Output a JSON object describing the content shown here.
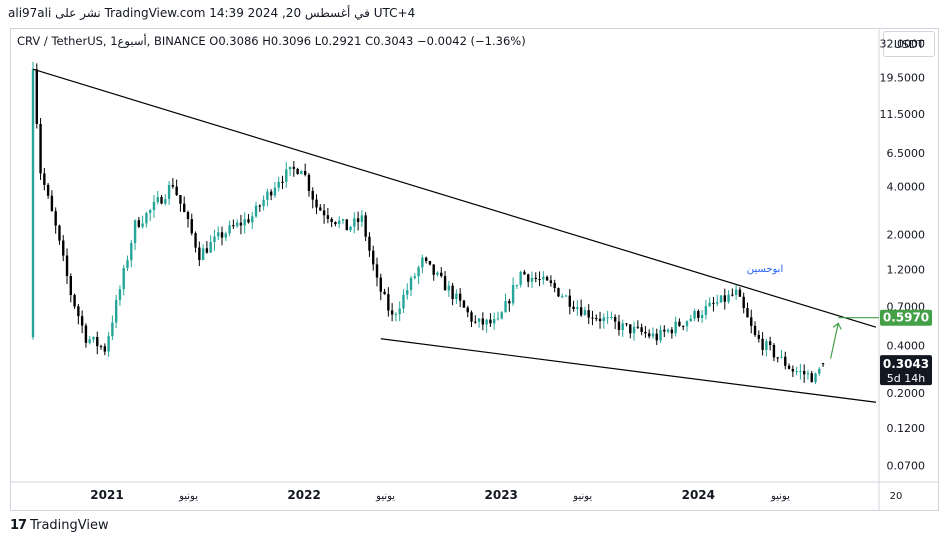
{
  "header": {
    "publisher_line": "ali97ali نشر على TradingView.com 14:39 2024 ,20 في أغسطس UTC+4"
  },
  "legend": {
    "symbol": "CRV / TetherUS, 1أسبوع, BINANCE",
    "open": "O0.3086",
    "high": "H0.3096",
    "low": "L0.2921",
    "close": "C0.3043",
    "change": "−0.0042 (−1.36%)"
  },
  "toolbar": {
    "currency_button": "USDT"
  },
  "annotation": {
    "text": "ابوحسين",
    "color": "#2962ff"
  },
  "price_tags": {
    "target": "0.5970",
    "current": "0.3043",
    "countdown": "5d 14h"
  },
  "footer": {
    "brand": "TradingView",
    "logo_mark": "17"
  },
  "colors": {
    "up": "#26a69a",
    "down": "#000000",
    "target": "#43a047"
  },
  "chart_data": {
    "type": "candlestick",
    "scale": "log",
    "ylim": [
      0.055,
      40
    ],
    "y_ticks": [
      "32.0000",
      "19.5000",
      "11.5000",
      "6.5000",
      "4.0000",
      "2.0000",
      "1.2000",
      "0.7000",
      "0.4000",
      "0.2000",
      "0.1200",
      "0.0700"
    ],
    "x_ticks": [
      "2021",
      "يونيو",
      "2022",
      "يونيو",
      "2023",
      "يونيو",
      "2024",
      "يونيو",
      "20"
    ],
    "close_anchors": [
      {
        "date": "2020-08-17",
        "close": 22.0
      },
      {
        "date": "2020-08-31",
        "close": 5.0
      },
      {
        "date": "2020-09-28",
        "close": 2.2
      },
      {
        "date": "2020-10-26",
        "close": 0.85
      },
      {
        "date": "2020-11-23",
        "close": 0.45
      },
      {
        "date": "2020-12-28",
        "close": 0.38
      },
      {
        "date": "2021-01-25",
        "close": 0.9
      },
      {
        "date": "2021-02-22",
        "close": 2.3
      },
      {
        "date": "2021-03-22",
        "close": 2.8
      },
      {
        "date": "2021-05-03",
        "close": 4.2
      },
      {
        "date": "2021-06-21",
        "close": 1.5
      },
      {
        "date": "2021-08-02",
        "close": 2.0
      },
      {
        "date": "2021-09-27",
        "close": 2.6
      },
      {
        "date": "2021-11-15",
        "close": 4.5
      },
      {
        "date": "2021-12-27",
        "close": 5.4
      },
      {
        "date": "2022-01-24",
        "close": 3.0
      },
      {
        "date": "2022-03-21",
        "close": 2.2
      },
      {
        "date": "2022-04-18",
        "close": 2.5
      },
      {
        "date": "2022-05-16",
        "close": 1.0
      },
      {
        "date": "2022-06-13",
        "close": 0.6
      },
      {
        "date": "2022-08-08",
        "close": 1.35
      },
      {
        "date": "2022-09-26",
        "close": 0.9
      },
      {
        "date": "2022-11-14",
        "close": 0.55
      },
      {
        "date": "2022-12-26",
        "close": 0.55
      },
      {
        "date": "2023-02-06",
        "close": 1.15
      },
      {
        "date": "2023-04-03",
        "close": 0.95
      },
      {
        "date": "2023-06-05",
        "close": 0.65
      },
      {
        "date": "2023-08-14",
        "close": 0.52
      },
      {
        "date": "2023-10-16",
        "close": 0.45
      },
      {
        "date": "2023-12-25",
        "close": 0.62
      },
      {
        "date": "2024-03-11",
        "close": 0.85
      },
      {
        "date": "2024-04-15",
        "close": 0.45
      },
      {
        "date": "2024-06-24",
        "close": 0.28
      },
      {
        "date": "2024-08-05",
        "close": 0.25
      },
      {
        "date": "2024-08-19",
        "close": 0.3043
      }
    ],
    "trendlines": [
      {
        "name": "upper",
        "points": [
          {
            "date": "2020-08-17",
            "value": 22.0
          },
          {
            "date": "2024-11-25",
            "value": 0.52
          }
        ]
      },
      {
        "name": "lower",
        "points": [
          {
            "date": "2022-05-23",
            "value": 0.44
          },
          {
            "date": "2024-11-25",
            "value": 0.175
          }
        ]
      }
    ],
    "target_arrow": {
      "from": {
        "date": "2024-09-02",
        "value": 0.33
      },
      "to": {
        "date": "2024-09-16",
        "value": 0.55
      }
    },
    "target_line": {
      "value": 0.597
    },
    "last_price": 0.3043,
    "last_ohlc": {
      "open": 0.3086,
      "high": 0.3096,
      "low": 0.2921,
      "close": 0.3043
    }
  }
}
